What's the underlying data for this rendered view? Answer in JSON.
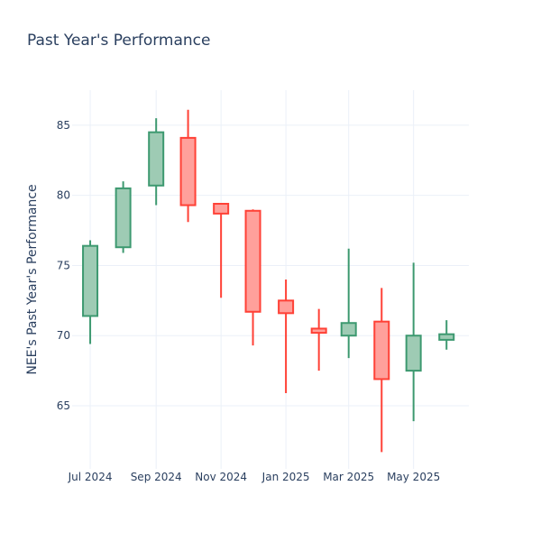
{
  "chart_data": {
    "type": "candlestick",
    "title": "Past Year's Performance",
    "xlabel": "",
    "ylabel": "NEE's Past Year's Performance",
    "ylim": [
      60.5,
      87.5
    ],
    "xlim": [
      "2024-06-14",
      "2025-06-22"
    ],
    "grid": true,
    "increasing_color": "#3d9970",
    "increasing_fill": "#9ecbb4",
    "decreasing_color": "#ff4136",
    "decreasing_fill": "#ffa09b",
    "y_ticks": [
      65,
      70,
      75,
      80,
      85
    ],
    "x_ticks": [
      {
        "date": "2024-07-01",
        "label": "Jul 2024"
      },
      {
        "date": "2024-09-01",
        "label": "Sep 2024"
      },
      {
        "date": "2024-11-01",
        "label": "Nov 2024"
      },
      {
        "date": "2025-01-01",
        "label": "Jan 2025"
      },
      {
        "date": "2025-03-01",
        "label": "Mar 2025"
      },
      {
        "date": "2025-05-01",
        "label": "May 2025"
      }
    ],
    "candles": [
      {
        "date": "2024-07-01",
        "open": 71.4,
        "high": 76.8,
        "low": 69.4,
        "close": 76.4
      },
      {
        "date": "2024-08-01",
        "open": 76.3,
        "high": 81.0,
        "low": 75.9,
        "close": 80.5
      },
      {
        "date": "2024-09-01",
        "open": 80.7,
        "high": 85.5,
        "low": 79.3,
        "close": 84.5
      },
      {
        "date": "2024-10-01",
        "open": 84.1,
        "high": 86.1,
        "low": 78.1,
        "close": 79.3
      },
      {
        "date": "2024-11-01",
        "open": 79.4,
        "high": 79.4,
        "low": 72.7,
        "close": 78.7
      },
      {
        "date": "2024-12-01",
        "open": 78.9,
        "high": 79.0,
        "low": 69.3,
        "close": 71.7
      },
      {
        "date": "2025-01-01",
        "open": 72.5,
        "high": 74.0,
        "low": 65.9,
        "close": 71.6
      },
      {
        "date": "2025-02-01",
        "open": 70.5,
        "high": 71.9,
        "low": 67.5,
        "close": 70.2
      },
      {
        "date": "2025-03-01",
        "open": 70.0,
        "high": 76.2,
        "low": 68.4,
        "close": 70.9
      },
      {
        "date": "2025-04-01",
        "open": 71.0,
        "high": 73.4,
        "low": 61.7,
        "close": 66.9
      },
      {
        "date": "2025-05-01",
        "open": 67.5,
        "high": 75.2,
        "low": 63.9,
        "close": 70.0
      },
      {
        "date": "2025-06-01",
        "open": 69.7,
        "high": 71.1,
        "low": 69.0,
        "close": 70.1
      }
    ]
  }
}
